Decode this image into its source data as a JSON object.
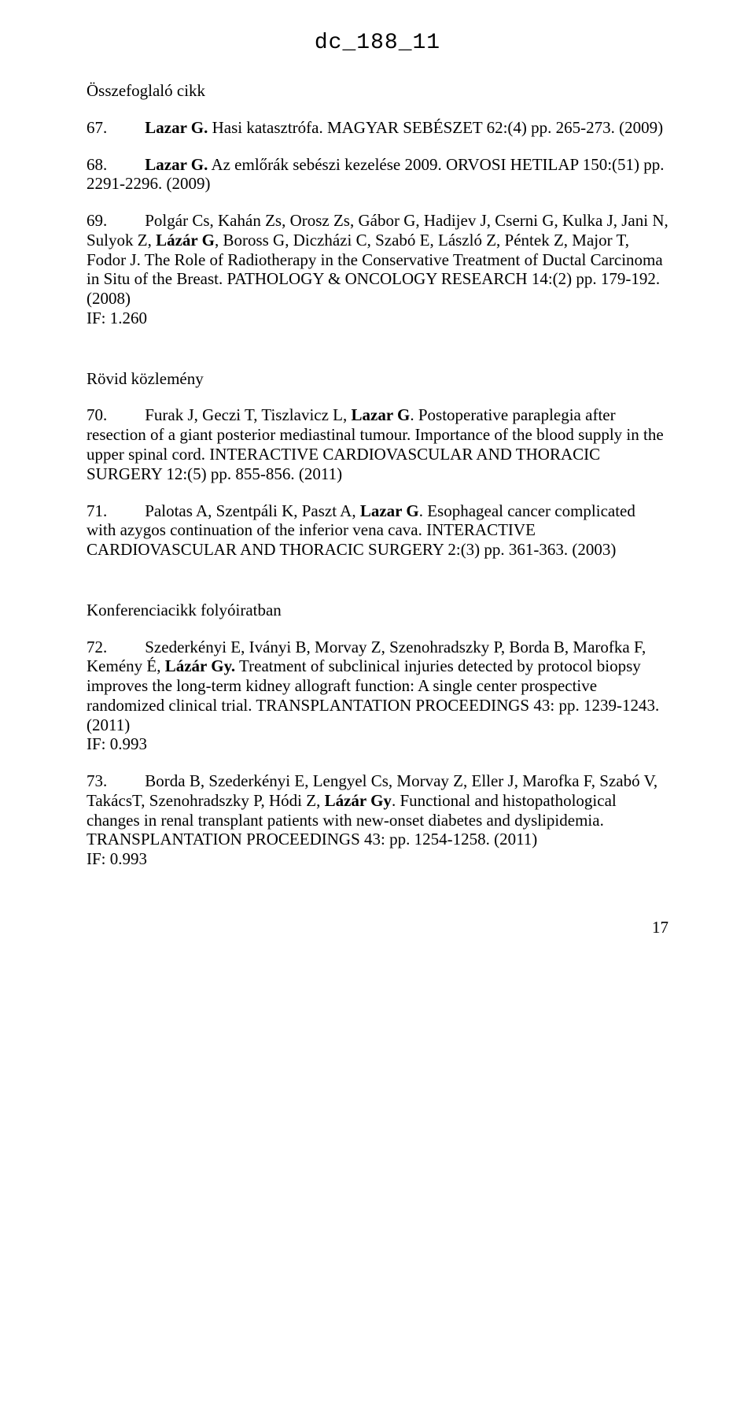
{
  "docId": "dc_188_11",
  "pageNumber": "17",
  "sections": {
    "summary": {
      "heading": "Összefoglaló cikk"
    },
    "short": {
      "heading": "Rövid közlemény"
    },
    "conf": {
      "heading": "Konferenciacikk folyóiratban"
    }
  },
  "e67": {
    "num": "67.",
    "authorBold": "Lazar G.",
    "rest": " Hasi katasztrófa. MAGYAR SEBÉSZET 62:(4) pp. 265-273. (2009)"
  },
  "e68": {
    "num": "68.",
    "authorBold": "Lazar G.",
    "rest": " Az emlőrák sebészi kezelése 2009. ORVOSI HETILAP 150:(51) pp. 2291-2296. (2009)"
  },
  "e69": {
    "num": "69.",
    "pre": "Polgár Cs, Kahán Zs, Orosz Zs, Gábor G, Hadijev J, Cserni G, Kulka J, Jani N, Sulyok Z, ",
    "authorBold": "Lázár G",
    "rest": ", Boross G, Diczházi C, Szabó E, László Z, Péntek Z, Major T, Fodor J. The Role of Radiotherapy in the Conservative Treatment of Ductal Carcinoma in Situ of the Breast. PATHOLOGY & ONCOLOGY RESEARCH 14:(2) pp. 179-192. (2008)",
    "if": "IF: 1.260"
  },
  "e70": {
    "num": "70.",
    "pre": "Furak J, Geczi T, Tiszlavicz L, ",
    "authorBold": "Lazar G",
    "rest": ". Postoperative paraplegia after resection of a giant posterior mediastinal tumour. Importance of the blood supply in the upper spinal cord. INTERACTIVE CARDIOVASCULAR AND THORACIC SURGERY 12:(5) pp. 855-856. (2011)"
  },
  "e71": {
    "num": "71.",
    "pre": "Palotas A, Szentpáli K, Paszt A, ",
    "authorBold": "Lazar G",
    "rest": ". Esophageal cancer complicated with azygos continuation of the inferior vena cava. INTERACTIVE CARDIOVASCULAR AND THORACIC SURGERY 2:(3) pp. 361-363. (2003)"
  },
  "e72": {
    "num": "72.",
    "pre": "Szederkényi E, Iványi B, Morvay Z, Szenohradszky P, Borda B, Marofka F, Kemény É, ",
    "authorBold": "Lázár Gy.",
    "rest": " Treatment of subclinical injuries detected by protocol biopsy improves the long-term kidney allograft function: A single center prospective randomized clinical trial. TRANSPLANTATION PROCEEDINGS 43: pp. 1239-1243. (2011)",
    "if": "IF: 0.993"
  },
  "e73": {
    "num": "73.",
    "pre": "Borda B, Szederkényi E, Lengyel Cs, Morvay Z, Eller J, Marofka F, Szabó V, TakácsT, Szenohradszky P, Hódi Z, ",
    "authorBold": "Lázár Gy",
    "rest": ". Functional and histopathological changes in renal transplant patients with new-onset diabetes and dyslipidemia. TRANSPLANTATION PROCEEDINGS 43: pp. 1254-1258. (2011)",
    "if": "IF: 0.993"
  }
}
